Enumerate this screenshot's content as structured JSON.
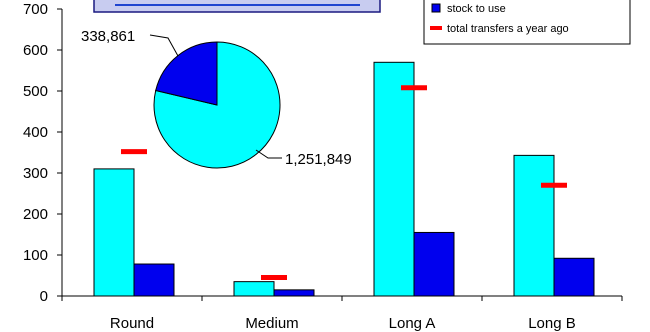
{
  "colors": {
    "series_a": "#00ffff",
    "series_b": "#0000ee",
    "marker": "#ff0000",
    "axis": "#000000",
    "title_box_bg": "#c8ccf0",
    "title_box_border": "#1a1a80",
    "title_underline": "#1f44d0"
  },
  "chart_data": {
    "type": "bar",
    "title": "",
    "xlabel": "",
    "ylabel": "",
    "ylim": [
      0,
      700
    ],
    "yticks": [
      0,
      100,
      200,
      300,
      400,
      500,
      600,
      700
    ],
    "categories": [
      "Round",
      "Medium",
      "Long A",
      "Long B"
    ],
    "series": [
      {
        "values": [
          310,
          35,
          570,
          343
        ],
        "color_key": "series_a"
      },
      {
        "name": "stock to use",
        "values": [
          78,
          15,
          155,
          92
        ],
        "color_key": "series_b"
      }
    ],
    "markers": {
      "name": "total transfers a year ago",
      "values": [
        352,
        45,
        508,
        270
      ]
    },
    "legend_position": "top-right",
    "grid": false,
    "inset_pie": {
      "type": "pie",
      "slices": [
        {
          "value": 338861,
          "label": "338,861",
          "color_key": "series_b"
        },
        {
          "value": 1251849,
          "label": "1,251,849",
          "color_key": "series_a"
        }
      ]
    }
  },
  "legend": {
    "entries": [
      {
        "label": "stock to use",
        "kind": "box",
        "color_key": "series_b"
      },
      {
        "label": "total transfers a year ago",
        "kind": "dash",
        "color_key": "marker"
      }
    ]
  }
}
